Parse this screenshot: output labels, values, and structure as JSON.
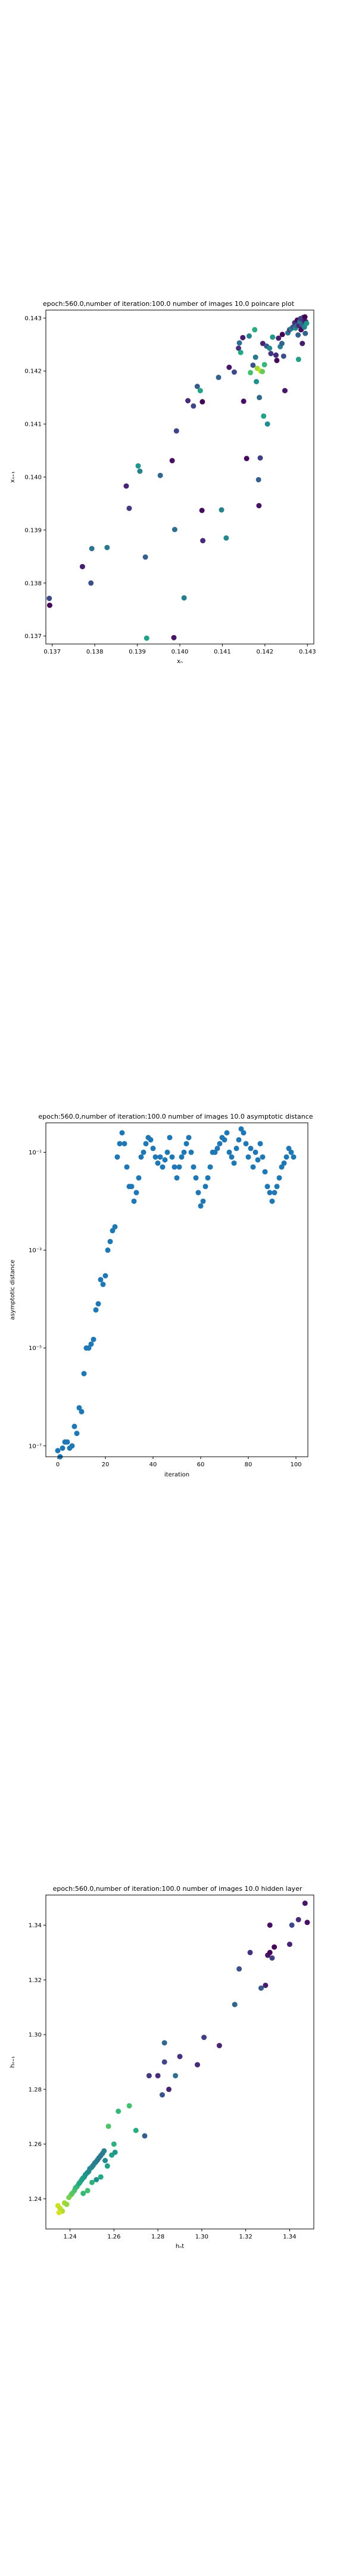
{
  "chart_data": [
    {
      "type": "scatter",
      "title": "epoch:560.0,number of iteration:100.0  number of images 10.0 poincare plot",
      "xlabel": "xₙ",
      "ylabel": "xₙ₊₁",
      "xlim": [
        0.13685,
        0.14315
      ],
      "ylim": [
        0.13685,
        0.14315
      ],
      "xticks": [
        "0.137",
        "0.138",
        "0.139",
        "0.140",
        "0.141",
        "0.142",
        "0.143"
      ],
      "yticks": [
        "0.137",
        "0.138",
        "0.139",
        "0.140",
        "0.141",
        "0.142",
        "0.143"
      ],
      "xtick_values": [
        0.137,
        0.138,
        0.139,
        0.14,
        0.141,
        0.142,
        0.143
      ],
      "ytick_values": [
        0.137,
        0.138,
        0.139,
        0.14,
        0.141,
        0.142,
        0.143
      ],
      "scale": "linear",
      "colormap": "viridis",
      "points": [
        [
          0.13693,
          0.13771,
          0.22
        ],
        [
          0.13694,
          0.13758,
          0.02
        ],
        [
          0.13771,
          0.13831,
          0.08
        ],
        [
          0.13791,
          0.138,
          0.24
        ],
        [
          0.13793,
          0.13865,
          0.38
        ],
        [
          0.13829,
          0.13867,
          0.4
        ],
        [
          0.13874,
          0.13983,
          0.1
        ],
        [
          0.13881,
          0.13941,
          0.16
        ],
        [
          0.13902,
          0.14021,
          0.52
        ],
        [
          0.13906,
          0.14011,
          0.44
        ],
        [
          0.13919,
          0.13849,
          0.3
        ],
        [
          0.13922,
          0.13696,
          0.56
        ],
        [
          0.13954,
          0.14003,
          0.34
        ],
        [
          0.13982,
          0.14031,
          0.04
        ],
        [
          0.13986,
          0.13697,
          0.06
        ],
        [
          0.13988,
          0.13901,
          0.36
        ],
        [
          0.13992,
          0.14087,
          0.2
        ],
        [
          0.1401,
          0.13772,
          0.42
        ],
        [
          0.14019,
          0.14144,
          0.12
        ],
        [
          0.14032,
          0.14134,
          0.2
        ],
        [
          0.14041,
          0.14171,
          0.28
        ],
        [
          0.14048,
          0.14163,
          0.58
        ],
        [
          0.14053,
          0.14142,
          0.0
        ],
        [
          0.14052,
          0.13937,
          0.03
        ],
        [
          0.14054,
          0.1388,
          0.12
        ],
        [
          0.14091,
          0.14188,
          0.3
        ],
        [
          0.14098,
          0.13938,
          0.44
        ],
        [
          0.14109,
          0.13885,
          0.46
        ],
        [
          0.14116,
          0.14207,
          0.06
        ],
        [
          0.14128,
          0.14198,
          0.22
        ],
        [
          0.14138,
          0.14243,
          0.14
        ],
        [
          0.1414,
          0.14253,
          0.36
        ],
        [
          0.14143,
          0.14235,
          0.6
        ],
        [
          0.14148,
          0.14263,
          0.08
        ],
        [
          0.1415,
          0.14143,
          0.04
        ],
        [
          0.14157,
          0.14035,
          0.02
        ],
        [
          0.14163,
          0.14266,
          0.44
        ],
        [
          0.14166,
          0.14197,
          0.7
        ],
        [
          0.14172,
          0.14211,
          0.26
        ],
        [
          0.14176,
          0.14278,
          0.62
        ],
        [
          0.14178,
          0.14226,
          0.4
        ],
        [
          0.1418,
          0.1418,
          0.5
        ],
        [
          0.14182,
          0.14205,
          0.86
        ],
        [
          0.14185,
          0.13995,
          0.3
        ],
        [
          0.14186,
          0.13946,
          0.05
        ],
        [
          0.14187,
          0.1415,
          0.34
        ],
        [
          0.14189,
          0.14036,
          0.18
        ],
        [
          0.1419,
          0.142,
          0.92
        ],
        [
          0.14194,
          0.14199,
          0.76
        ],
        [
          0.14195,
          0.14252,
          0.1
        ],
        [
          0.14197,
          0.14115,
          0.58
        ],
        [
          0.14199,
          0.14212,
          0.66
        ],
        [
          0.14204,
          0.14247,
          0.28
        ],
        [
          0.14206,
          0.141,
          0.48
        ],
        [
          0.14211,
          0.14243,
          0.46
        ],
        [
          0.14214,
          0.14233,
          0.16
        ],
        [
          0.14218,
          0.14264,
          0.54
        ],
        [
          0.14226,
          0.1423,
          0.12
        ],
        [
          0.14228,
          0.1422,
          0.02
        ],
        [
          0.14232,
          0.14262,
          0.08
        ],
        [
          0.14236,
          0.14246,
          0.42
        ],
        [
          0.1424,
          0.14252,
          0.32
        ],
        [
          0.14241,
          0.14269,
          0.0
        ],
        [
          0.14244,
          0.14228,
          0.24
        ],
        [
          0.14247,
          0.14163,
          0.06
        ],
        [
          0.14254,
          0.14272,
          0.38
        ],
        [
          0.14258,
          0.14278,
          0.2
        ],
        [
          0.14262,
          0.1428,
          0.44
        ],
        [
          0.14266,
          0.14283,
          0.26
        ],
        [
          0.1427,
          0.14291,
          0.14
        ],
        [
          0.14272,
          0.14281,
          0.5
        ],
        [
          0.14274,
          0.14285,
          0.34
        ],
        [
          0.14276,
          0.14296,
          0.04
        ],
        [
          0.14278,
          0.14268,
          0.3
        ],
        [
          0.14279,
          0.14222,
          0.56
        ],
        [
          0.1428,
          0.14286,
          0.1
        ],
        [
          0.14282,
          0.14293,
          0.4
        ],
        [
          0.14284,
          0.14299,
          0.18
        ],
        [
          0.14285,
          0.14278,
          0.02
        ],
        [
          0.14287,
          0.14288,
          0.36
        ],
        [
          0.14288,
          0.14252,
          0.08
        ],
        [
          0.1429,
          0.14301,
          0.22
        ],
        [
          0.14291,
          0.14286,
          0.28
        ],
        [
          0.14292,
          0.14296,
          0.12
        ],
        [
          0.14293,
          0.14283,
          0.46
        ],
        [
          0.14294,
          0.14302,
          0.0
        ],
        [
          0.14295,
          0.14271,
          0.32
        ],
        [
          0.14296,
          0.14293,
          0.06
        ],
        [
          0.14298,
          0.1429,
          0.52
        ]
      ]
    },
    {
      "type": "scatter",
      "title": "epoch:560.0,number of iteration:100.0  number of images 10.0 asymptotic distance",
      "xlabel": "iteration",
      "ylabel": "asymptotic distance",
      "xlim": [
        -5,
        105
      ],
      "ylim": [
        6e-08,
        0.4
      ],
      "scale_y": "log",
      "xticks": [
        "0",
        "20",
        "40",
        "60",
        "80",
        "100"
      ],
      "xtick_values": [
        0,
        20,
        40,
        60,
        80,
        100
      ],
      "yticks": [
        "10⁻⁷",
        "10⁻⁵",
        "10⁻³",
        "10⁻¹"
      ],
      "ytick_values": [
        1e-07,
        1e-05,
        0.001,
        0.1
      ],
      "color": "#1f77b4",
      "x": [
        0,
        1,
        2,
        3,
        4,
        5,
        6,
        7,
        8,
        9,
        10,
        11,
        12,
        13,
        14,
        15,
        16,
        17,
        18,
        19,
        20,
        21,
        22,
        23,
        24,
        25,
        26,
        27,
        28,
        29,
        30,
        31,
        32,
        33,
        34,
        35,
        36,
        37,
        38,
        39,
        40,
        41,
        42,
        43,
        44,
        45,
        46,
        47,
        48,
        49,
        50,
        51,
        52,
        53,
        54,
        55,
        56,
        57,
        58,
        59,
        60,
        61,
        62,
        63,
        64,
        65,
        66,
        67,
        68,
        69,
        70,
        71,
        72,
        73,
        74,
        75,
        76,
        77,
        78,
        79,
        80,
        81,
        82,
        83,
        84,
        85,
        86,
        87,
        88,
        89,
        90,
        91,
        92,
        93,
        94,
        95,
        96,
        97,
        98,
        99
      ],
      "y": [
        8e-08,
        6e-08,
        9e-08,
        1.2e-07,
        1.2e-07,
        9e-08,
        1e-07,
        2.5e-07,
        1.8e-07,
        6e-07,
        5e-07,
        3e-06,
        1e-05,
        1e-05,
        1.2e-05,
        1.5e-05,
        6e-05,
        8e-05,
        0.00025,
        0.0002,
        0.0003,
        0.001,
        0.0015,
        0.0025,
        0.003,
        0.08,
        0.15,
        0.25,
        0.15,
        0.05,
        0.02,
        0.02,
        0.01,
        0.015,
        0.03,
        0.08,
        0.1,
        0.15,
        0.2,
        0.18,
        0.12,
        0.08,
        0.06,
        0.08,
        0.05,
        0.07,
        0.1,
        0.2,
        0.08,
        0.05,
        0.03,
        0.05,
        0.08,
        0.1,
        0.15,
        0.2,
        0.1,
        0.05,
        0.03,
        0.015,
        0.008,
        0.01,
        0.02,
        0.03,
        0.05,
        0.1,
        0.1,
        0.12,
        0.15,
        0.2,
        0.18,
        0.25,
        0.1,
        0.08,
        0.06,
        0.12,
        0.18,
        0.3,
        0.25,
        0.15,
        0.08,
        0.12,
        0.05,
        0.1,
        0.07,
        0.15,
        0.08,
        0.04,
        0.02,
        0.015,
        0.01,
        0.015,
        0.02,
        0.03,
        0.05,
        0.06,
        0.08,
        0.12,
        0.1,
        0.08
      ]
    },
    {
      "type": "scatter",
      "title": "epoch:560.0,number of iteration:100.0  number of images 10.0 hidden layer",
      "xlabel": "hₙt",
      "ylabel": "hₙ₊₁",
      "xlim": [
        1.229,
        1.351
      ],
      "ylim": [
        1.229,
        1.351
      ],
      "xticks": [
        "1.24",
        "1.26",
        "1.28",
        "1.30",
        "1.32",
        "1.34"
      ],
      "xtick_values": [
        1.24,
        1.26,
        1.28,
        1.3,
        1.32,
        1.34
      ],
      "yticks": [
        "1.24",
        "1.26",
        "1.28",
        "1.30",
        "1.32",
        "1.34"
      ],
      "ytick_values": [
        1.24,
        1.26,
        1.28,
        1.3,
        1.32,
        1.34
      ],
      "colormap": "viridis",
      "points": [
        [
          1.2345,
          1.2375,
          0.92
        ],
        [
          1.2355,
          1.2365,
          0.9
        ],
        [
          1.2365,
          1.2355,
          0.88
        ],
        [
          1.235,
          1.235,
          0.94
        ],
        [
          1.2375,
          1.2385,
          0.86
        ],
        [
          1.2385,
          1.238,
          0.84
        ],
        [
          1.2395,
          1.2405,
          0.8
        ],
        [
          1.2405,
          1.2415,
          0.78
        ],
        [
          1.241,
          1.242,
          0.74
        ],
        [
          1.242,
          1.243,
          0.72
        ],
        [
          1.2425,
          1.244,
          0.68
        ],
        [
          1.2432,
          1.2445,
          0.66
        ],
        [
          1.244,
          1.2455,
          0.62
        ],
        [
          1.2445,
          1.246,
          0.6
        ],
        [
          1.2452,
          1.2468,
          0.58
        ],
        [
          1.2458,
          1.2475,
          0.56
        ],
        [
          1.2465,
          1.248,
          0.54
        ],
        [
          1.247,
          1.2488,
          0.52
        ],
        [
          1.2478,
          1.2495,
          0.5
        ],
        [
          1.2485,
          1.25,
          0.48
        ],
        [
          1.249,
          1.251,
          0.46
        ],
        [
          1.2498,
          1.2515,
          0.45
        ],
        [
          1.2505,
          1.2522,
          0.44
        ],
        [
          1.2512,
          1.253,
          0.43
        ],
        [
          1.2518,
          1.2535,
          0.42
        ],
        [
          1.2525,
          1.2542,
          0.41
        ],
        [
          1.2532,
          1.255,
          0.4
        ],
        [
          1.254,
          1.2558,
          0.4
        ],
        [
          1.2548,
          1.2566,
          0.42
        ],
        [
          1.2555,
          1.2575,
          0.44
        ],
        [
          1.248,
          1.243,
          0.7
        ],
        [
          1.25,
          1.246,
          0.64
        ],
        [
          1.254,
          1.248,
          0.6
        ],
        [
          1.257,
          1.252,
          0.56
        ],
        [
          1.259,
          1.256,
          0.58
        ],
        [
          1.26,
          1.26,
          0.64
        ],
        [
          1.2575,
          1.2665,
          0.72
        ],
        [
          1.2605,
          1.257,
          0.52
        ],
        [
          1.256,
          1.254,
          0.48
        ],
        [
          1.252,
          1.247,
          0.5
        ],
        [
          1.246,
          1.242,
          0.66
        ],
        [
          1.262,
          1.272,
          0.66
        ],
        [
          1.267,
          1.274,
          0.7
        ],
        [
          1.27,
          1.265,
          0.62
        ],
        [
          1.274,
          1.263,
          0.3
        ],
        [
          1.276,
          1.285,
          0.16
        ],
        [
          1.28,
          1.285,
          0.12
        ],
        [
          1.282,
          1.278,
          0.26
        ],
        [
          1.283,
          1.29,
          0.2
        ],
        [
          1.285,
          1.28,
          0.1
        ],
        [
          1.29,
          1.292,
          0.14
        ],
        [
          1.283,
          1.297,
          0.34
        ],
        [
          1.288,
          1.285,
          0.36
        ],
        [
          1.301,
          1.299,
          0.18
        ],
        [
          1.298,
          1.289,
          0.12
        ],
        [
          1.308,
          1.296,
          0.1
        ],
        [
          1.315,
          1.311,
          0.32
        ],
        [
          1.317,
          1.324,
          0.24
        ],
        [
          1.322,
          1.33,
          0.14
        ],
        [
          1.327,
          1.317,
          0.28
        ],
        [
          1.329,
          1.318,
          0.08
        ],
        [
          1.33,
          1.329,
          0.06
        ],
        [
          1.331,
          1.33,
          0.02
        ],
        [
          1.331,
          1.34,
          0.04
        ],
        [
          1.333,
          1.332,
          0.0
        ],
        [
          1.34,
          1.333,
          0.1
        ],
        [
          1.341,
          1.34,
          0.22
        ],
        [
          1.347,
          1.348,
          0.06
        ],
        [
          1.348,
          1.341,
          0.04
        ],
        [
          1.332,
          1.328,
          0.18
        ],
        [
          1.344,
          1.342,
          0.12
        ]
      ]
    }
  ]
}
